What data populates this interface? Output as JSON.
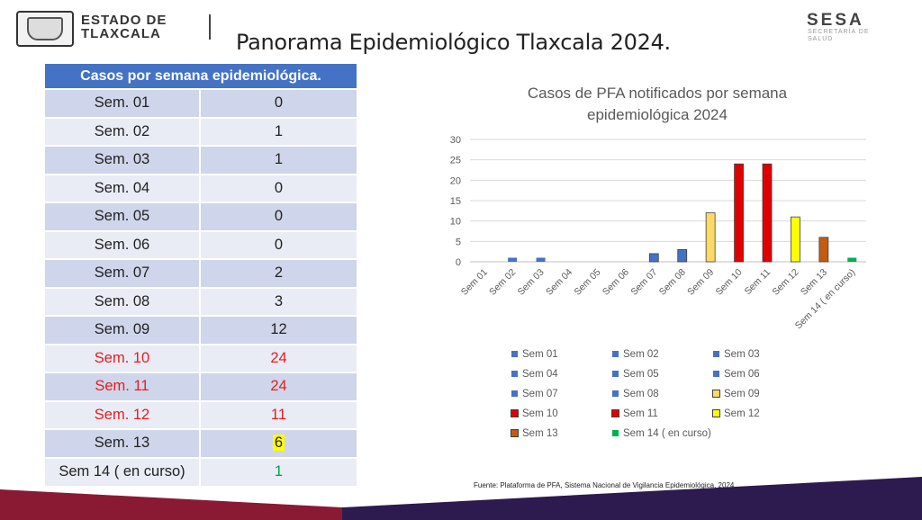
{
  "header": {
    "estado_line1": "ESTADO DE",
    "estado_line2": "TLAXCALA",
    "page_title": "Panorama Epidemiológico Tlaxcala 2024.",
    "sesa_logo": "SESA",
    "sesa_sub1": "SECRETARÍA DE",
    "sesa_sub2": "SALUD"
  },
  "table": {
    "header": "Casos por semana epidemiológica.",
    "rows": [
      {
        "week": "Sem. 01",
        "cases": "0"
      },
      {
        "week": "Sem. 02",
        "cases": "1"
      },
      {
        "week": "Sem. 03",
        "cases": "1"
      },
      {
        "week": "Sem. 04",
        "cases": "0"
      },
      {
        "week": "Sem. 05",
        "cases": "0"
      },
      {
        "week": "Sem. 06",
        "cases": "0"
      },
      {
        "week": "Sem. 07",
        "cases": "2"
      },
      {
        "week": "Sem. 08",
        "cases": "3"
      },
      {
        "week": "Sem. 09",
        "cases": "12"
      },
      {
        "week": "Sem. 10",
        "cases": "24"
      },
      {
        "week": "Sem. 11",
        "cases": "24"
      },
      {
        "week": "Sem. 12",
        "cases": "11"
      },
      {
        "week": "Sem. 13",
        "cases": "6"
      },
      {
        "week": "Sem 14 ( en curso)",
        "cases": "1"
      }
    ]
  },
  "chart_data": {
    "type": "bar",
    "title": "Casos de PFA notificados por semana epidemiológica 2024",
    "title_line1": "Casos de PFA notificados por semana",
    "title_line2": "epidemiológica 2024",
    "categories": [
      "Sem 01",
      "Sem 02",
      "Sem 03",
      "Sem 04",
      "Sem 05",
      "Sem 06",
      "Sem 07",
      "Sem 08",
      "Sem 09",
      "Sem 10",
      "Sem 11",
      "Sem 12",
      "Sem 13",
      "Sem 14 ( en curso)"
    ],
    "values": [
      0,
      1,
      1,
      0,
      0,
      0,
      2,
      3,
      12,
      24,
      24,
      11,
      6,
      1
    ],
    "colors": [
      "#4472c4",
      "#4472c4",
      "#4472c4",
      "#4472c4",
      "#4472c4",
      "#4472c4",
      "#4472c4",
      "#4472c4",
      "#ffd966",
      "#e00000",
      "#e00000",
      "#ffff00",
      "#c55a11",
      "#00b050"
    ],
    "y_ticks": [
      "0",
      "5",
      "10",
      "15",
      "20",
      "25",
      "30"
    ],
    "ylim": [
      0,
      30
    ],
    "grid": true,
    "legend_position": "bottom"
  },
  "source": "Fuente: Plataforma de PFA, Sistema Nacional de Vigilancia Epidemiológica, 2024"
}
